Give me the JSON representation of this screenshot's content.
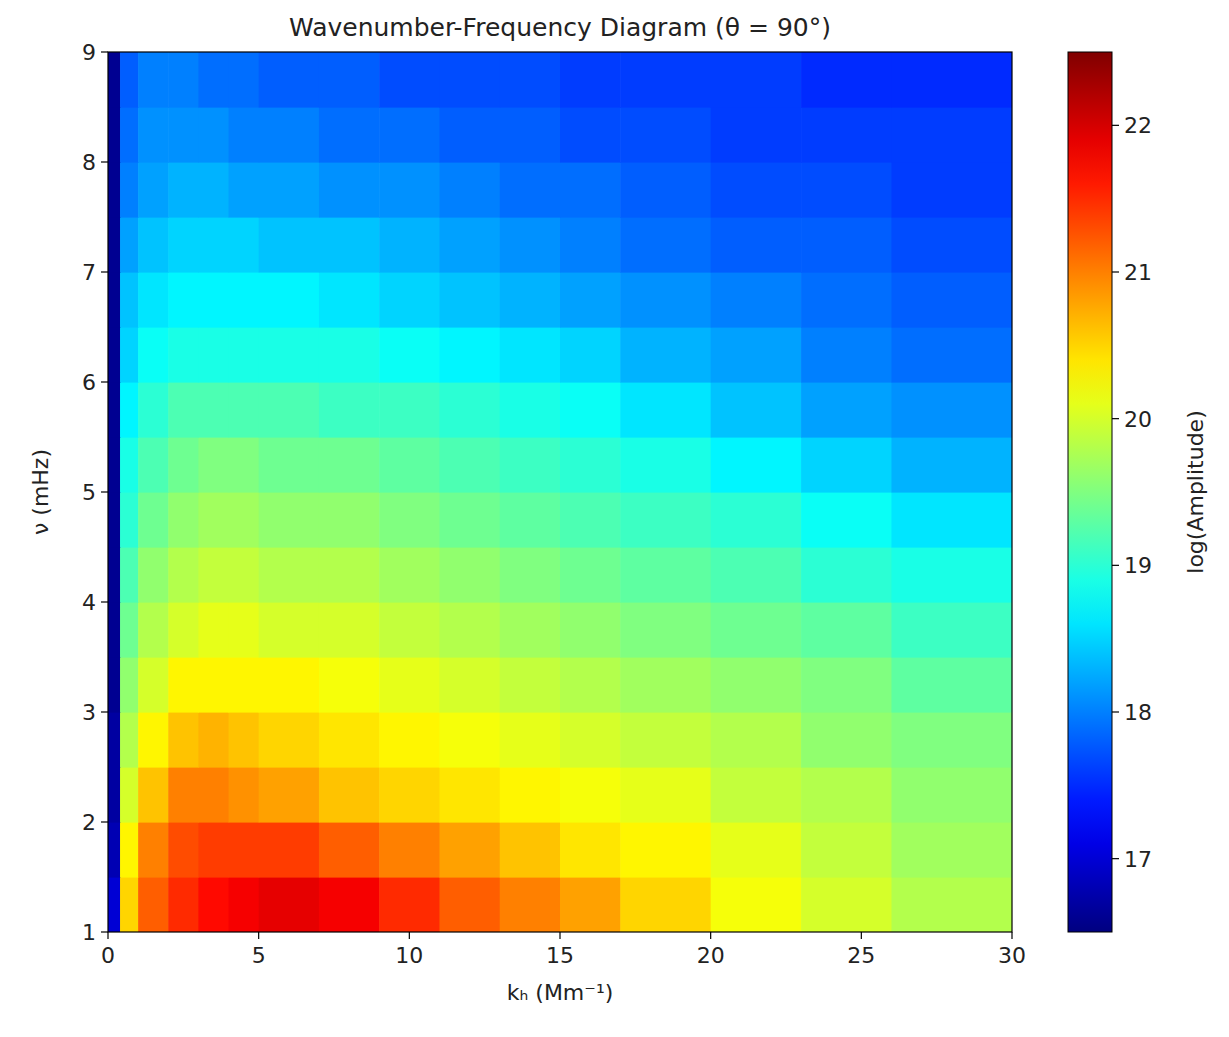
{
  "chart_data": {
    "type": "heatmap",
    "title": "Wavenumber-Frequency Diagram (θ = 90°)",
    "x_label": "kₕ (Mm⁻¹)",
    "y_label": "ν (mHz)",
    "xlim": [
      0,
      30
    ],
    "ylim": [
      1,
      9
    ],
    "xticks": [
      0,
      5,
      10,
      15,
      20,
      25,
      30
    ],
    "yticks": [
      1,
      2,
      3,
      4,
      5,
      6,
      7,
      8,
      9
    ],
    "x_edges": [
      0,
      0.4,
      1,
      2,
      3,
      4,
      5,
      7,
      9,
      11,
      13,
      15,
      17,
      20,
      23,
      26,
      30
    ],
    "y_edges": [
      1,
      1.5,
      2,
      2.5,
      3,
      3.5,
      4,
      4.5,
      5,
      5.5,
      6,
      6.5,
      7,
      7.5,
      8,
      8.5,
      9
    ],
    "cells": [
      [
        17.0,
        20.5,
        21.2,
        21.5,
        21.7,
        21.8,
        21.9,
        21.8,
        21.5,
        21.2,
        21.0,
        20.8,
        20.5,
        20.2,
        20.0,
        19.8
      ],
      [
        16.8,
        20.3,
        21.0,
        21.3,
        21.4,
        21.4,
        21.4,
        21.2,
        21.0,
        20.8,
        20.6,
        20.4,
        20.3,
        20.1,
        19.9,
        19.7
      ],
      [
        16.7,
        20.0,
        20.6,
        21.0,
        21.0,
        20.9,
        20.8,
        20.6,
        20.5,
        20.4,
        20.3,
        20.2,
        20.1,
        19.9,
        19.8,
        19.6
      ],
      [
        16.7,
        19.8,
        20.3,
        20.6,
        20.7,
        20.6,
        20.5,
        20.4,
        20.3,
        20.2,
        20.1,
        20.0,
        19.9,
        19.8,
        19.6,
        19.5
      ],
      [
        16.6,
        19.6,
        20.0,
        20.3,
        20.3,
        20.3,
        20.3,
        20.2,
        20.1,
        20.0,
        19.9,
        19.8,
        19.7,
        19.6,
        19.5,
        19.3
      ],
      [
        16.6,
        19.4,
        19.8,
        20.0,
        20.1,
        20.1,
        20.0,
        20.0,
        19.9,
        19.8,
        19.7,
        19.6,
        19.5,
        19.4,
        19.3,
        19.1
      ],
      [
        16.6,
        19.2,
        19.6,
        19.8,
        19.9,
        19.9,
        19.8,
        19.8,
        19.7,
        19.6,
        19.5,
        19.4,
        19.3,
        19.2,
        19.0,
        18.9
      ],
      [
        16.6,
        19.0,
        19.4,
        19.6,
        19.7,
        19.7,
        19.6,
        19.6,
        19.5,
        19.4,
        19.3,
        19.2,
        19.1,
        19.0,
        18.8,
        18.6
      ],
      [
        16.6,
        18.9,
        19.2,
        19.4,
        19.5,
        19.5,
        19.4,
        19.4,
        19.3,
        19.2,
        19.1,
        19.0,
        18.9,
        18.7,
        18.5,
        18.3
      ],
      [
        16.6,
        18.7,
        19.0,
        19.2,
        19.2,
        19.2,
        19.2,
        19.1,
        19.1,
        19.0,
        18.9,
        18.8,
        18.6,
        18.4,
        18.2,
        18.1
      ],
      [
        16.6,
        18.5,
        18.8,
        18.9,
        18.9,
        18.9,
        18.9,
        18.9,
        18.8,
        18.7,
        18.6,
        18.5,
        18.3,
        18.2,
        18.0,
        17.9
      ],
      [
        16.6,
        18.4,
        18.6,
        18.7,
        18.7,
        18.7,
        18.7,
        18.6,
        18.5,
        18.4,
        18.3,
        18.2,
        18.1,
        18.0,
        17.9,
        17.8
      ],
      [
        16.6,
        18.2,
        18.4,
        18.5,
        18.5,
        18.5,
        18.4,
        18.4,
        18.3,
        18.2,
        18.1,
        18.0,
        17.9,
        17.8,
        17.8,
        17.7
      ],
      [
        16.6,
        18.0,
        18.2,
        18.3,
        18.3,
        18.2,
        18.2,
        18.1,
        18.1,
        18.0,
        17.9,
        17.9,
        17.8,
        17.7,
        17.7,
        17.6
      ],
      [
        16.6,
        17.9,
        18.1,
        18.1,
        18.1,
        18.0,
        18.0,
        17.9,
        17.9,
        17.8,
        17.8,
        17.7,
        17.7,
        17.6,
        17.6,
        17.6
      ],
      [
        16.6,
        17.8,
        18.0,
        18.0,
        17.9,
        17.9,
        17.8,
        17.8,
        17.7,
        17.7,
        17.7,
        17.6,
        17.6,
        17.6,
        17.5,
        17.5
      ]
    ],
    "colorbar": {
      "label": "log(Amplitude)",
      "range": [
        16.5,
        22.5
      ],
      "ticks": [
        17,
        18,
        19,
        20,
        21,
        22
      ]
    }
  }
}
